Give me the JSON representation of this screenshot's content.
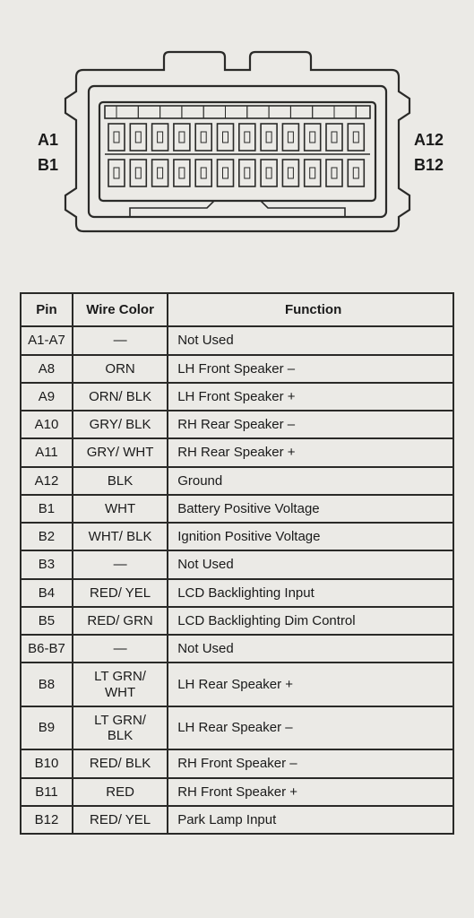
{
  "connector": {
    "label_left_top": "A1",
    "label_left_bottom": "B1",
    "label_right_top": "A12",
    "label_right_bottom": "B12",
    "pin_columns": 12,
    "pin_rows": 2,
    "stroke": "#2a2a28",
    "stroke_width_outer": 2.2,
    "stroke_width_pin": 1.6,
    "fill": "none",
    "background": "#ebeae6",
    "label_fontsize": 18
  },
  "table": {
    "border_color": "#2a2a28",
    "border_width": 2,
    "background": "#ebeae6",
    "header_fontsize": 15,
    "cell_fontsize": 15,
    "text_color": "#1a1a1a",
    "columns": [
      {
        "key": "pin",
        "label": "Pin",
        "width_pct": 12,
        "align": "center"
      },
      {
        "key": "color",
        "label": "Wire Color",
        "width_pct": 22,
        "align": "center"
      },
      {
        "key": "func",
        "label": "Function",
        "width_pct": 66,
        "align": "left"
      }
    ],
    "rows": [
      {
        "pin": "A1-A7",
        "color": "—",
        "func": "Not Used"
      },
      {
        "pin": "A8",
        "color": "ORN",
        "func": "LH Front Speaker –"
      },
      {
        "pin": "A9",
        "color": "ORN/ BLK",
        "func": "LH Front Speaker +"
      },
      {
        "pin": "A10",
        "color": "GRY/ BLK",
        "func": "RH Rear Speaker –"
      },
      {
        "pin": "A11",
        "color": "GRY/ WHT",
        "func": "RH Rear Speaker +"
      },
      {
        "pin": "A12",
        "color": "BLK",
        "func": "Ground"
      },
      {
        "pin": "B1",
        "color": "WHT",
        "func": "Battery Positive Voltage"
      },
      {
        "pin": "B2",
        "color": "WHT/ BLK",
        "func": "Ignition Positive Voltage"
      },
      {
        "pin": "B3",
        "color": "—",
        "func": "Not Used"
      },
      {
        "pin": "B4",
        "color": "RED/ YEL",
        "func": "LCD Backlighting Input"
      },
      {
        "pin": "B5",
        "color": "RED/ GRN",
        "func": "LCD Backlighting Dim Control"
      },
      {
        "pin": "B6-B7",
        "color": "—",
        "func": "Not Used"
      },
      {
        "pin": "B8",
        "color": "LT GRN/\nWHT",
        "func": "LH Rear Speaker +",
        "tall": true
      },
      {
        "pin": "B9",
        "color": "LT GRN/\nBLK",
        "func": "LH Rear Speaker –",
        "tall": true
      },
      {
        "pin": "B10",
        "color": "RED/ BLK",
        "func": "RH Front Speaker –"
      },
      {
        "pin": "B11",
        "color": "RED",
        "func": "RH Front Speaker +"
      },
      {
        "pin": "B12",
        "color": "RED/ YEL",
        "func": "Park Lamp Input"
      }
    ]
  }
}
